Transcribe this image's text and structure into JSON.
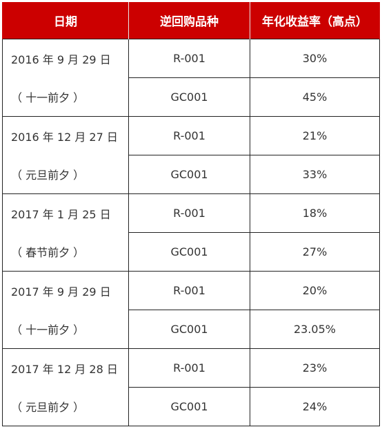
{
  "colors": {
    "header_bg": "#cc0000",
    "header_text": "#ffffff",
    "border": "#222222",
    "cell_text": "#333333"
  },
  "table": {
    "headers": [
      "日期",
      "逆回购品种",
      "年化收益率（高点）"
    ],
    "rows": [
      {
        "date": "2016 年 9 月 29 日",
        "note": "（ 十一前夕 ）",
        "items": [
          {
            "product": "R-001",
            "rate": "30%"
          },
          {
            "product": "GC001",
            "rate": "45%"
          }
        ]
      },
      {
        "date": "2016 年 12 月 27 日",
        "note": "（ 元旦前夕 ）",
        "items": [
          {
            "product": "R-001",
            "rate": "21%"
          },
          {
            "product": "GC001",
            "rate": "33%"
          }
        ]
      },
      {
        "date": "2017 年 1 月 25 日",
        "note": "（ 春节前夕 ）",
        "items": [
          {
            "product": "R-001",
            "rate": "18%"
          },
          {
            "product": "GC001",
            "rate": "27%"
          }
        ]
      },
      {
        "date": "2017 年 9 月 29 日",
        "note": "（ 十一前夕 ）",
        "items": [
          {
            "product": "R-001",
            "rate": "20%"
          },
          {
            "product": "GC001",
            "rate": "23.05%"
          }
        ]
      },
      {
        "date": "2017 年 12 月 28 日",
        "note": "（ 元旦前夕 ）",
        "items": [
          {
            "product": "R-001",
            "rate": "23%"
          },
          {
            "product": "GC001",
            "rate": "24%"
          }
        ]
      }
    ]
  }
}
